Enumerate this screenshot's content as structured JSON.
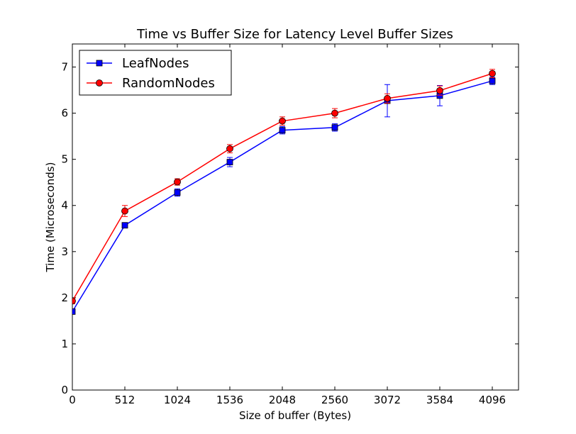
{
  "chart_data": {
    "type": "line",
    "title": "Time vs Buffer Size for Latency Level Buffer Sizes",
    "xlabel": "Size of buffer (Bytes)",
    "ylabel": "Time (Microseconds)",
    "xlim": [
      0,
      4352
    ],
    "ylim": [
      0,
      7.5
    ],
    "xticks": [
      0,
      512,
      1024,
      1536,
      2048,
      2560,
      3072,
      3584,
      4096
    ],
    "yticks": [
      0,
      1,
      2,
      3,
      4,
      5,
      6,
      7
    ],
    "legend_position": "top-left",
    "grid": false,
    "x": [
      0,
      512,
      1024,
      1536,
      2048,
      2560,
      3072,
      3584,
      4096
    ],
    "series": [
      {
        "name": "LeafNodes",
        "color": "#0000ff",
        "marker": "square",
        "values": [
          1.7,
          3.57,
          4.28,
          4.94,
          5.63,
          5.69,
          6.27,
          6.38,
          6.7
        ],
        "errors": [
          0.05,
          0.04,
          0.08,
          0.1,
          0.08,
          0.08,
          0.35,
          0.22,
          0.08
        ]
      },
      {
        "name": "RandomNodes",
        "color": "#ff0000",
        "marker": "circle",
        "values": [
          1.93,
          3.88,
          4.51,
          5.23,
          5.83,
          6.0,
          6.32,
          6.49,
          6.86
        ],
        "errors": [
          0.06,
          0.12,
          0.07,
          0.09,
          0.09,
          0.1,
          0.1,
          0.1,
          0.09
        ]
      }
    ]
  }
}
